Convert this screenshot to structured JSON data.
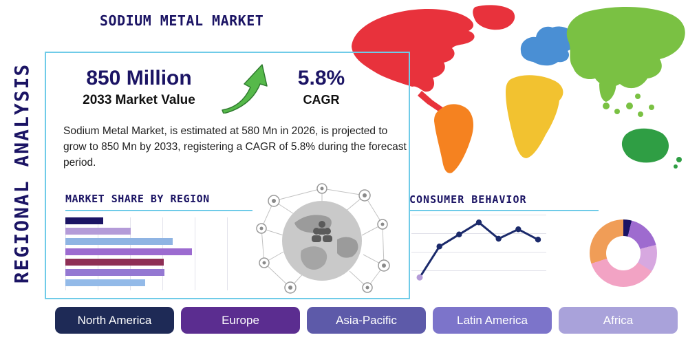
{
  "theme": {
    "accent": "#6fcbe8",
    "navy": "#1b1464"
  },
  "header": {
    "title": "SODIUM METAL MARKET",
    "side_label": "REGIONAL ANALYSIS"
  },
  "stats": {
    "market_value": "850 Million",
    "market_value_label": "2033 Market Value",
    "cagr_value": "5.8%",
    "cagr_label": "CAGR",
    "growth_arrow_color": "#56b94a",
    "description": "Sodium Metal Market, is estimated at 580 Mn in 2026, is projected to grow to 850 Mn by 2033, registering a CAGR of 5.8% during the forecast period."
  },
  "chart_data": [
    {
      "type": "bar",
      "title": "MARKET SHARE BY REGION",
      "orientation": "horizontal",
      "values": [
        29,
        50,
        82,
        97,
        75,
        76,
        61
      ],
      "unit": "percent-of-max (estimated, no axis labels shown)",
      "colors": [
        "#1b1464",
        "#b49bd8",
        "#8fb4e3",
        "#9c6bd0",
        "#8e2f55",
        "#9478d2",
        "#93bae8"
      ],
      "axis_labels_visible": false,
      "grid": "vertical"
    },
    {
      "type": "line",
      "title": "CONSUMER BEHAVIOR",
      "x": [
        1,
        2,
        3,
        4,
        5,
        6,
        7
      ],
      "values": [
        0.3,
        3.9,
        5.3,
        6.7,
        4.8,
        5.9,
        4.7
      ],
      "ylim": [
        0,
        8
      ],
      "line_color": "#1b2a6b",
      "first_marker_color": "#b49bd8",
      "grid": "horizontal",
      "axis_labels_visible": false
    },
    {
      "type": "pie",
      "donut": true,
      "slices": [
        {
          "color": "#1b1464",
          "value": 4
        },
        {
          "color": "#9e6bcf",
          "value": 17
        },
        {
          "color": "#d7a8e0",
          "value": 13
        },
        {
          "color": "#f2a3c4",
          "value": 36
        },
        {
          "color": "#f09d57",
          "value": 30
        }
      ]
    }
  ],
  "map": {
    "regions": [
      {
        "name": "north-america",
        "color": "#e8323c"
      },
      {
        "name": "greenland",
        "color": "#e8323c"
      },
      {
        "name": "south-america",
        "color": "#f58220"
      },
      {
        "name": "europe",
        "color": "#4a8fd4"
      },
      {
        "name": "africa",
        "color": "#f2c230"
      },
      {
        "name": "asia",
        "color": "#7ac143"
      },
      {
        "name": "oceania",
        "color": "#2f9e44"
      }
    ]
  },
  "region_buttons": [
    {
      "label": "North America",
      "color": "#1e2a56"
    },
    {
      "label": "Europe",
      "color": "#5b2d90"
    },
    {
      "label": "Asia-Pacific",
      "color": "#5d5aa9"
    },
    {
      "label": "Latin America",
      "color": "#7c74ca"
    },
    {
      "label": "Africa",
      "color": "#a9a2da"
    }
  ]
}
